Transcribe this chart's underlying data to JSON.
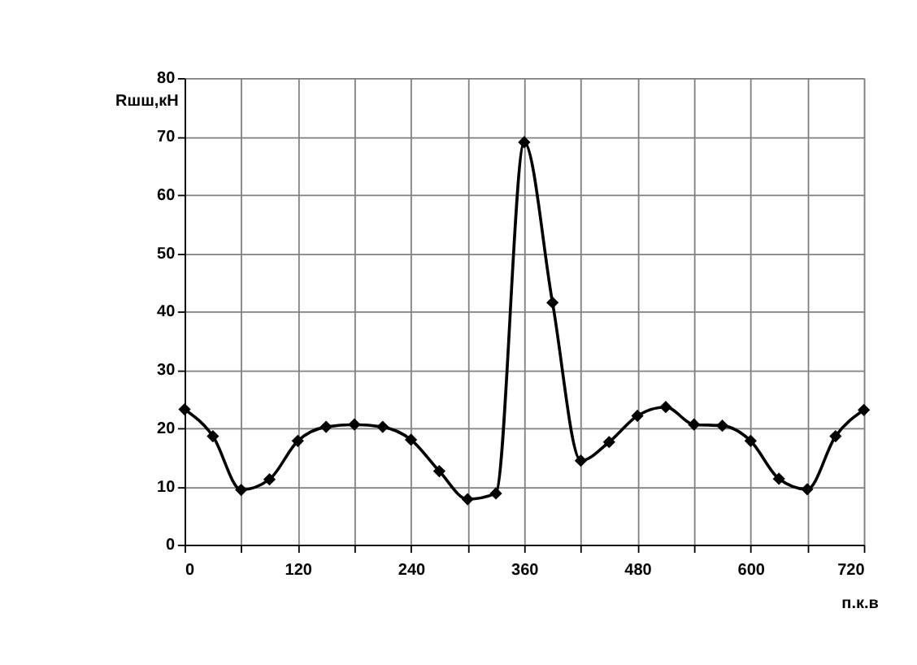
{
  "chart_data": {
    "type": "line",
    "xlabel": "п.к.в",
    "ylabel": "Rшш,кН",
    "x": [
      0,
      30,
      60,
      90,
      120,
      150,
      180,
      210,
      240,
      270,
      300,
      330,
      360,
      390,
      420,
      450,
      480,
      510,
      540,
      570,
      600,
      630,
      660,
      690,
      720
    ],
    "series": [
      {
        "color": "#000000",
        "values": [
          23.2,
          18.6,
          9.4,
          11.2,
          17.8,
          20.2,
          20.6,
          20.2,
          18.0,
          12.6,
          7.8,
          8.8,
          69.0,
          41.5,
          14.4,
          17.6,
          22.1,
          23.6,
          20.6,
          20.4,
          17.8,
          11.3,
          9.5,
          18.6,
          23.1
        ]
      }
    ],
    "xlim": [
      0,
      720
    ],
    "ylim": [
      0,
      80
    ],
    "xticks": [
      0,
      {
        "value": 60,
        "label": null
      },
      120,
      {
        "value": 180,
        "label": null
      },
      240,
      {
        "value": 300,
        "label": null
      },
      360,
      {
        "value": 420,
        "label": null
      },
      480,
      {
        "value": 540,
        "label": null
      },
      600,
      {
        "value": 660,
        "label": null
      },
      720
    ],
    "yticks": [
      0,
      10,
      20,
      30,
      40,
      50,
      60,
      70,
      80
    ],
    "grid": true,
    "marker": "diamond",
    "line_style": "solid"
  }
}
